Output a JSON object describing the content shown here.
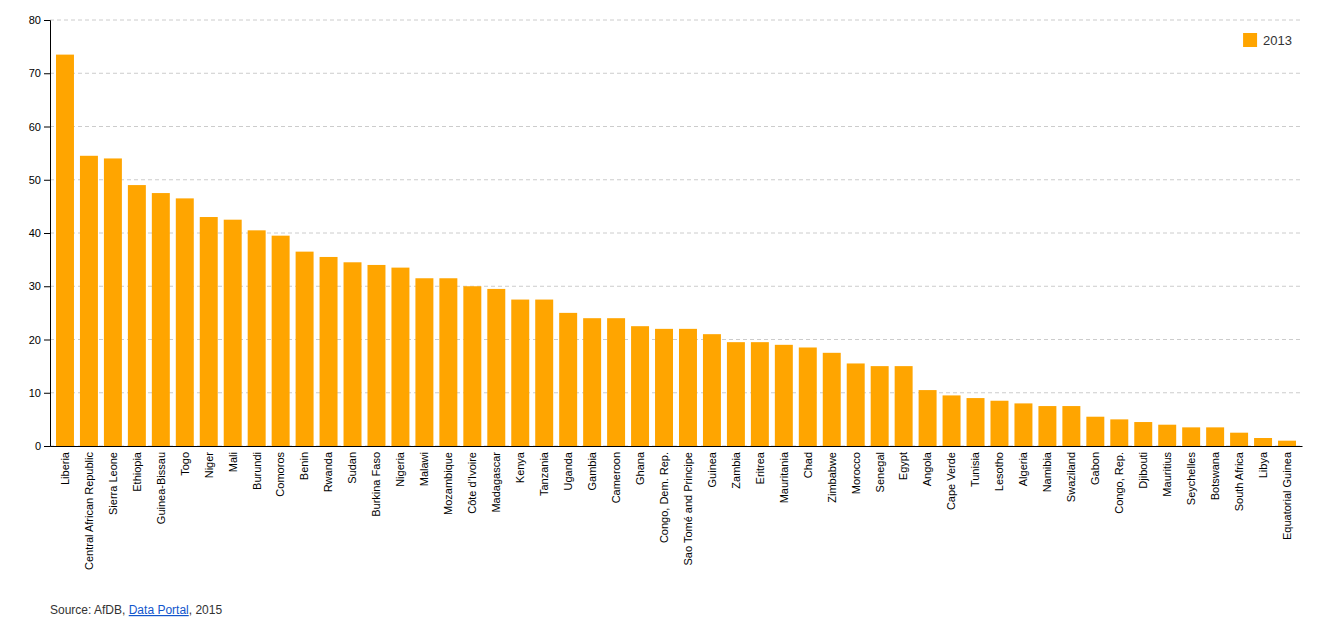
{
  "chart_data": {
    "type": "bar",
    "categories": [
      "Liberia",
      "Central African Republic",
      "Sierra Leone",
      "Ethiopia",
      "Guinea-Bissau",
      "Togo",
      "Niger",
      "Mali",
      "Burundi",
      "Comoros",
      "Benin",
      "Rwanda",
      "Sudan",
      "Burkina Faso",
      "Nigeria",
      "Malawi",
      "Mozambique",
      "Côte d’Ivoire",
      "Madagascar",
      "Kenya",
      "Tanzania",
      "Uganda",
      "Gambia",
      "Cameroon",
      "Ghana",
      "Congo, Dem. Rep.",
      "Sao Tomé and Principe",
      "Guinea",
      "Zambia",
      "Eritrea",
      "Mauritania",
      "Chad",
      "Zimbabwe",
      "Morocco",
      "Senegal",
      "Egypt",
      "Angola",
      "Cape Verde",
      "Tunisia",
      "Lesotho",
      "Algeria",
      "Namibia",
      "Swaziland",
      "Gabon",
      "Congo, Rep.",
      "Djibouti",
      "Mauritius",
      "Seychelles",
      "Botswana",
      "South Africa",
      "Libya",
      "Equatorial Guinea"
    ],
    "series": [
      {
        "name": "2013",
        "color": "#FFA500",
        "values": [
          73.5,
          54.5,
          54.0,
          49.0,
          47.5,
          46.5,
          43.0,
          42.5,
          40.5,
          39.5,
          36.5,
          35.5,
          34.5,
          34.0,
          33.5,
          31.5,
          31.5,
          30.0,
          29.5,
          27.5,
          27.5,
          25.0,
          24.0,
          24.0,
          22.5,
          22.0,
          22.0,
          21.0,
          19.5,
          19.5,
          19.0,
          18.5,
          17.5,
          15.5,
          15.0,
          15.0,
          10.5,
          9.5,
          9.0,
          8.5,
          8.0,
          7.5,
          7.5,
          5.5,
          5.0,
          4.5,
          4.0,
          3.5,
          3.5,
          2.5,
          1.5,
          1.0
        ]
      }
    ],
    "ylim": [
      0,
      80
    ],
    "yticks": [
      0,
      10,
      20,
      30,
      40,
      50,
      60,
      70,
      80
    ],
    "grid": true,
    "legend": "upper right",
    "annotations": [
      "Source: AfDB, ",
      "Data Portal",
      ", 2015"
    ]
  }
}
